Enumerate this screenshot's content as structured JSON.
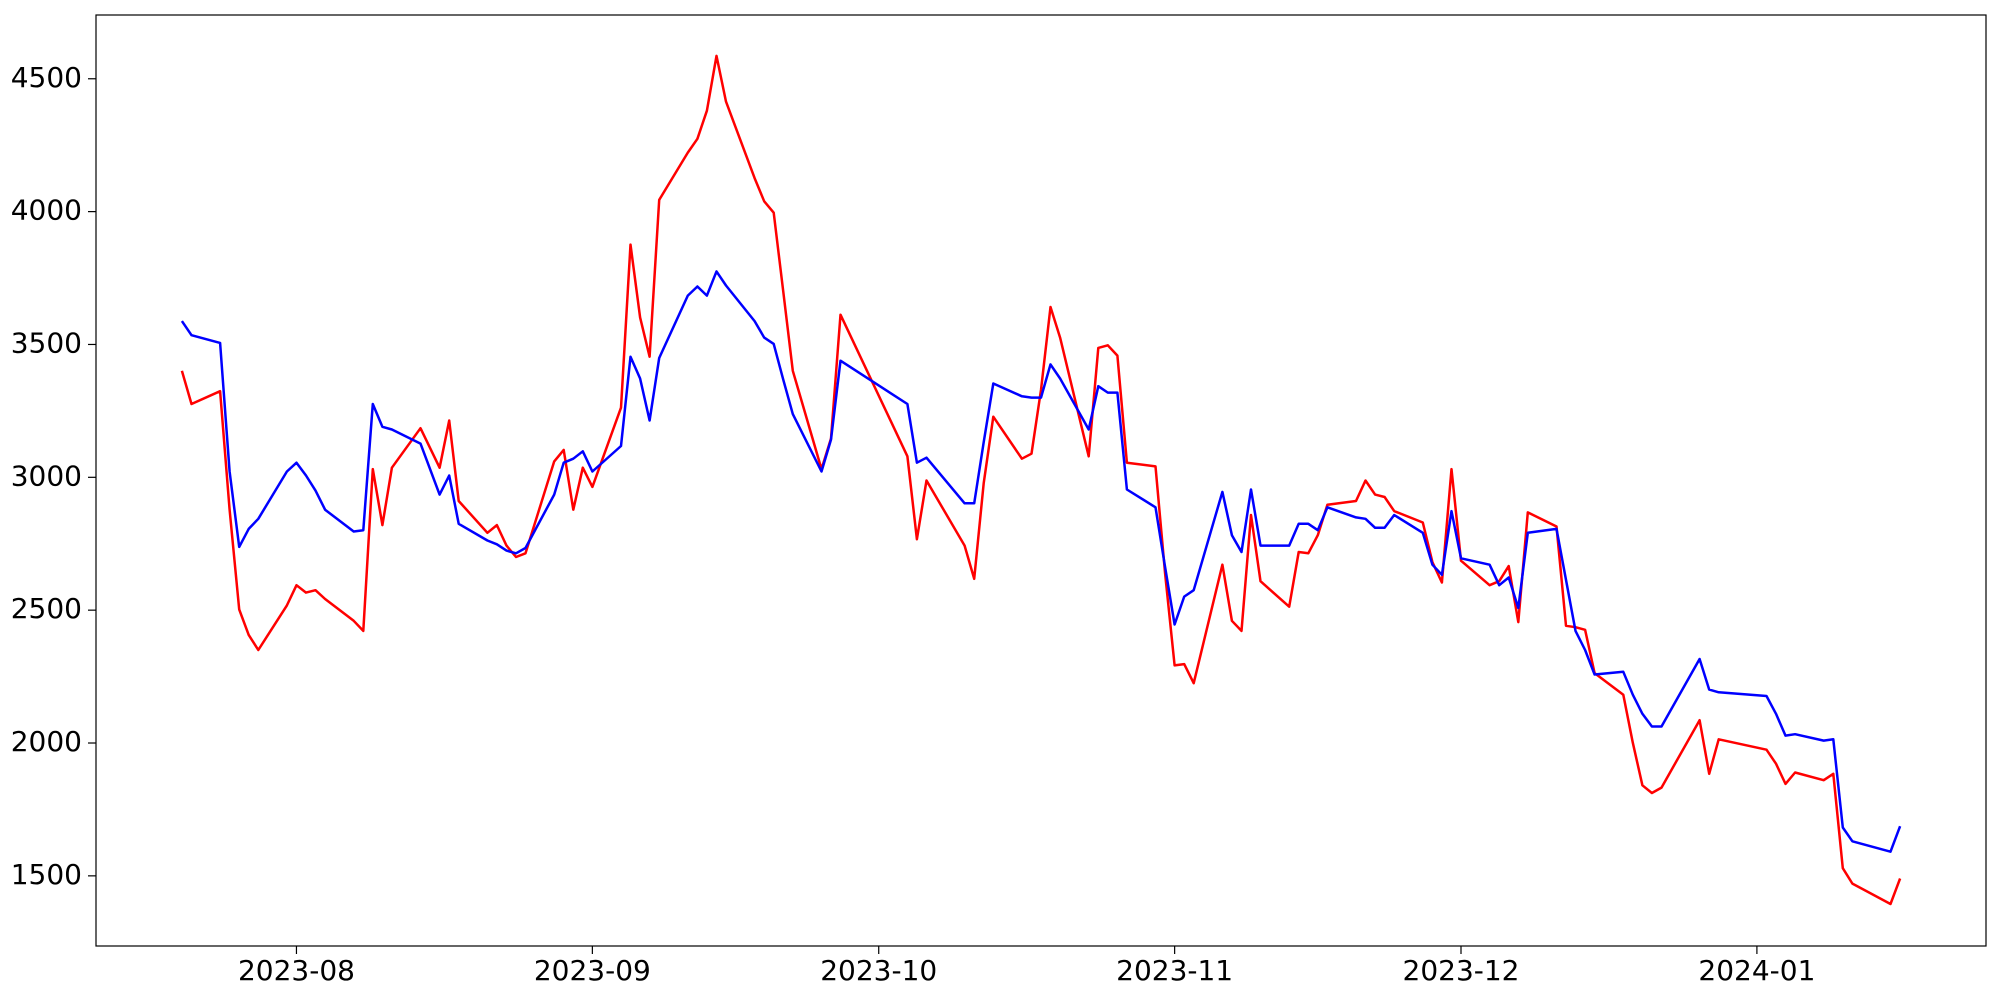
{
  "chart_data": {
    "type": "line",
    "x": [
      "2023-07-20",
      "2023-07-21",
      "2023-07-24",
      "2023-07-25",
      "2023-07-26",
      "2023-07-27",
      "2023-07-28",
      "2023-07-31",
      "2023-08-01",
      "2023-08-02",
      "2023-08-03",
      "2023-08-04",
      "2023-08-07",
      "2023-08-08",
      "2023-08-09",
      "2023-08-10",
      "2023-08-11",
      "2023-08-14",
      "2023-08-16",
      "2023-08-17",
      "2023-08-18",
      "2023-08-21",
      "2023-08-22",
      "2023-08-23",
      "2023-08-24",
      "2023-08-25",
      "2023-08-28",
      "2023-08-29",
      "2023-08-30",
      "2023-08-31",
      "2023-09-01",
      "2023-09-04",
      "2023-09-05",
      "2023-09-06",
      "2023-09-07",
      "2023-09-08",
      "2023-09-11",
      "2023-09-12",
      "2023-09-13",
      "2023-09-14",
      "2023-09-15",
      "2023-09-18",
      "2023-09-19",
      "2023-09-20",
      "2023-09-21",
      "2023-09-22",
      "2023-09-25",
      "2023-09-26",
      "2023-09-27",
      "2023-10-04",
      "2023-10-05",
      "2023-10-06",
      "2023-10-10",
      "2023-10-11",
      "2023-10-12",
      "2023-10-13",
      "2023-10-16",
      "2023-10-17",
      "2023-10-18",
      "2023-10-19",
      "2023-10-20",
      "2023-10-23",
      "2023-10-24",
      "2023-10-25",
      "2023-10-26",
      "2023-10-27",
      "2023-10-30",
      "2023-10-31",
      "2023-11-01",
      "2023-11-02",
      "2023-11-03",
      "2023-11-06",
      "2023-11-07",
      "2023-11-08",
      "2023-11-09",
      "2023-11-10",
      "2023-11-13",
      "2023-11-14",
      "2023-11-15",
      "2023-11-16",
      "2023-11-17",
      "2023-11-20",
      "2023-11-21",
      "2023-11-22",
      "2023-11-23",
      "2023-11-24",
      "2023-11-27",
      "2023-11-28",
      "2023-11-29",
      "2023-11-30",
      "2023-12-01",
      "2023-12-04",
      "2023-12-05",
      "2023-12-06",
      "2023-12-07",
      "2023-12-08",
      "2023-12-11",
      "2023-12-12",
      "2023-12-13",
      "2023-12-14",
      "2023-12-15",
      "2023-12-18",
      "2023-12-19",
      "2023-12-20",
      "2023-12-21",
      "2023-12-22",
      "2023-12-26",
      "2023-12-27",
      "2023-12-28",
      "2024-01-02",
      "2024-01-03",
      "2024-01-04",
      "2024-01-05",
      "2024-01-08",
      "2024-01-09",
      "2024-01-10",
      "2024-01-11",
      "2024-01-15",
      "2024-01-16"
    ],
    "series": [
      {
        "color": "#ff0000",
        "values": [
          3401,
          3276,
          3324,
          2878,
          2503,
          2407,
          2350,
          2518,
          2594,
          2566,
          2575,
          2542,
          2460,
          2422,
          3031,
          2820,
          3036,
          3185,
          3036,
          3214,
          2911,
          2791,
          2820,
          2743,
          2700,
          2714,
          3060,
          3103,
          2878,
          3036,
          2964,
          3262,
          3876,
          3602,
          3454,
          4044,
          4222,
          4274,
          4380,
          4586,
          4414,
          4126,
          4039,
          3996,
          3698,
          3401,
          3031,
          3146,
          3612,
          3079,
          2767,
          2988,
          2743,
          2618,
          2978,
          3228,
          3070,
          3089,
          3329,
          3641,
          3526,
          3079,
          3487,
          3497,
          3458,
          3055,
          3041,
          2638,
          2292,
          2297,
          2225,
          2671,
          2460,
          2422,
          2858,
          2609,
          2513,
          2719,
          2714,
          2782,
          2897,
          2911,
          2988,
          2935,
          2926,
          2873,
          2830,
          2681,
          2604,
          3031,
          2686,
          2594,
          2609,
          2666,
          2455,
          2868,
          2815,
          2441,
          2436,
          2426,
          2263,
          2182,
          2001,
          1841,
          1812,
          1832,
          2086,
          1884,
          2014,
          1975,
          1922,
          1846,
          1889,
          1860,
          1884,
          1529,
          1471,
          1394,
          1490
        ]
      },
      {
        "color": "#0000ff",
        "values": [
          3588,
          3535,
          3506,
          3022,
          2738,
          2806,
          2844,
          3022,
          3055,
          3007,
          2950,
          2878,
          2796,
          2801,
          3276,
          3190,
          3180,
          3127,
          2935,
          3007,
          2825,
          2762,
          2748,
          2724,
          2714,
          2734,
          2935,
          3055,
          3070,
          3098,
          3022,
          3118,
          3454,
          3372,
          3214,
          3449,
          3684,
          3718,
          3684,
          3775,
          3722,
          3588,
          3526,
          3502,
          3367,
          3238,
          3022,
          3142,
          3439,
          3276,
          3055,
          3074,
          2902,
          2902,
          3132,
          3353,
          3305,
          3300,
          3300,
          3425,
          3372,
          3180,
          3343,
          3319,
          3319,
          2954,
          2887,
          2662,
          2446,
          2551,
          2575,
          2945,
          2782,
          2719,
          2954,
          2743,
          2743,
          2825,
          2825,
          2801,
          2887,
          2849,
          2844,
          2810,
          2810,
          2858,
          2791,
          2671,
          2633,
          2873,
          2695,
          2671,
          2594,
          2623,
          2508,
          2791,
          2806,
          2614,
          2422,
          2350,
          2258,
          2268,
          2182,
          2110,
          2062,
          2062,
          2316,
          2201,
          2191,
          2177,
          2110,
          2028,
          2033,
          2009,
          2014,
          1682,
          1630,
          1591,
          1687
        ]
      }
    ],
    "xlim": [
      "2023-07-11",
      "2024-01-25"
    ],
    "xticks": [
      {
        "value": "2023-08-01",
        "label": "2023-08"
      },
      {
        "value": "2023-09-01",
        "label": "2023-09"
      },
      {
        "value": "2023-10-01",
        "label": "2023-10"
      },
      {
        "value": "2023-11-01",
        "label": "2023-11"
      },
      {
        "value": "2023-12-01",
        "label": "2023-12"
      },
      {
        "value": "2024-01-01",
        "label": "2024-01"
      }
    ],
    "ylim": [
      1236,
      4740
    ],
    "yticks": [
      1500,
      2000,
      2500,
      3000,
      3500,
      4000,
      4500
    ],
    "grid": false
  }
}
